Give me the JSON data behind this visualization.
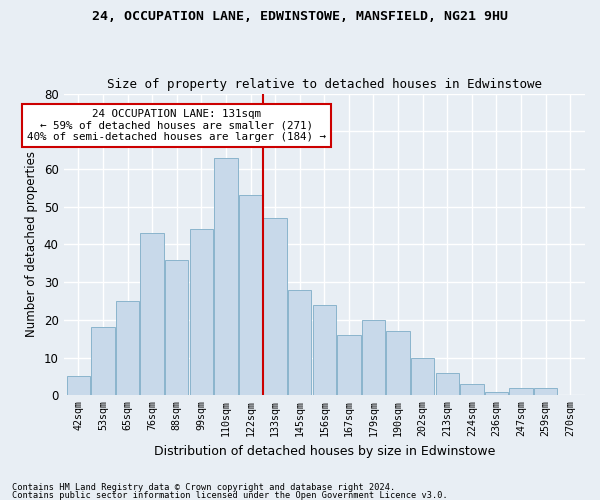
{
  "title1": "24, OCCUPATION LANE, EDWINSTOWE, MANSFIELD, NG21 9HU",
  "title2": "Size of property relative to detached houses in Edwinstowe",
  "xlabel": "Distribution of detached houses by size in Edwinstowe",
  "ylabel": "Number of detached properties",
  "categories": [
    "42sqm",
    "53sqm",
    "65sqm",
    "76sqm",
    "88sqm",
    "99sqm",
    "110sqm",
    "122sqm",
    "133sqm",
    "145sqm",
    "156sqm",
    "167sqm",
    "179sqm",
    "190sqm",
    "202sqm",
    "213sqm",
    "224sqm",
    "236sqm",
    "247sqm",
    "259sqm",
    "270sqm"
  ],
  "values": [
    5,
    18,
    25,
    43,
    36,
    44,
    63,
    53,
    47,
    28,
    24,
    16,
    20,
    17,
    10,
    6,
    3,
    1,
    2,
    2,
    0
  ],
  "bar_color": "#c8d9ea",
  "bar_edge_color": "#8ab4cc",
  "annotation_title": "24 OCCUPATION LANE: 131sqm",
  "annotation_line1": "← 59% of detached houses are smaller (271)",
  "annotation_line2": "40% of semi-detached houses are larger (184) →",
  "annotation_box_facecolor": "#ffffff",
  "annotation_box_edgecolor": "#cc0000",
  "reference_line_color": "#cc0000",
  "reference_bin_index": 8,
  "ylim": [
    0,
    80
  ],
  "yticks": [
    0,
    10,
    20,
    30,
    40,
    50,
    60,
    70,
    80
  ],
  "footer1": "Contains HM Land Registry data © Crown copyright and database right 2024.",
  "footer2": "Contains public sector information licensed under the Open Government Licence v3.0.",
  "bg_color": "#e8eef4",
  "plot_bg_color": "#e8eef4",
  "grid_color": "#ffffff"
}
